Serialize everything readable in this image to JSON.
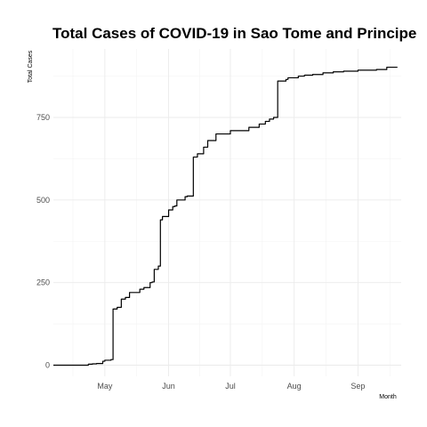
{
  "chart_data": {
    "type": "line",
    "title": "Total Cases of COVID-19 in Sao Tome and Principe",
    "xlabel": "Month",
    "ylabel": "Total Cases",
    "x_ticks": [
      {
        "date": "2020-05-01",
        "label": "May"
      },
      {
        "date": "2020-06-01",
        "label": "Jun"
      },
      {
        "date": "2020-07-01",
        "label": "Jul"
      },
      {
        "date": "2020-08-01",
        "label": "Aug"
      },
      {
        "date": "2020-09-01",
        "label": "Sep"
      }
    ],
    "y_ticks": [
      0,
      250,
      500,
      750
    ],
    "ylim": [
      0,
      900
    ],
    "xlim": [
      "2020-04-06",
      "2020-09-22"
    ],
    "grid": true,
    "series": [
      {
        "color": "#000000",
        "x": [
          "2020-04-06",
          "2020-04-20",
          "2020-04-23",
          "2020-04-25",
          "2020-04-27",
          "2020-04-30",
          "2020-05-01",
          "2020-05-04",
          "2020-05-05",
          "2020-05-07",
          "2020-05-09",
          "2020-05-11",
          "2020-05-13",
          "2020-05-18",
          "2020-05-20",
          "2020-05-23",
          "2020-05-24",
          "2020-05-25",
          "2020-05-27",
          "2020-05-28",
          "2020-05-29",
          "2020-06-01",
          "2020-06-03",
          "2020-06-04",
          "2020-06-05",
          "2020-06-09",
          "2020-06-10",
          "2020-06-13",
          "2020-06-15",
          "2020-06-18",
          "2020-06-20",
          "2020-06-24",
          "2020-07-01",
          "2020-07-10",
          "2020-07-15",
          "2020-07-18",
          "2020-07-20",
          "2020-07-22",
          "2020-07-24",
          "2020-07-28",
          "2020-07-29",
          "2020-08-03",
          "2020-08-06",
          "2020-08-10",
          "2020-08-15",
          "2020-08-20",
          "2020-08-25",
          "2020-09-01",
          "2020-09-10",
          "2020-09-15",
          "2020-09-20"
        ],
        "y": [
          0,
          0,
          3,
          4,
          5,
          12,
          15,
          17,
          170,
          175,
          200,
          205,
          220,
          230,
          235,
          250,
          252,
          290,
          300,
          440,
          450,
          470,
          480,
          482,
          500,
          510,
          512,
          630,
          640,
          660,
          680,
          700,
          710,
          720,
          730,
          738,
          745,
          750,
          860,
          865,
          870,
          875,
          878,
          880,
          885,
          888,
          890,
          893,
          895,
          902,
          903
        ]
      }
    ]
  }
}
